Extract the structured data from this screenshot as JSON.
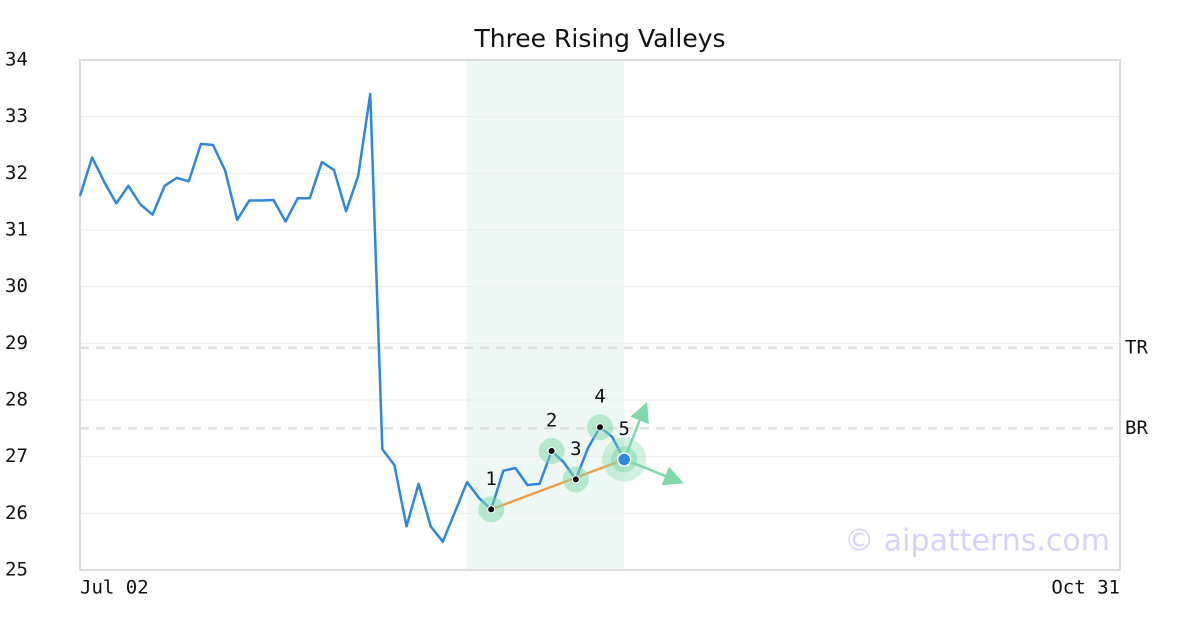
{
  "chart_data": {
    "type": "line",
    "title": "Three Rising Valleys",
    "categories": [
      "Jul 02",
      null,
      null,
      null,
      null,
      null,
      null,
      null,
      null,
      null,
      null,
      null,
      null,
      null,
      null,
      null,
      null,
      null,
      null,
      null,
      null,
      null,
      null,
      null,
      null,
      null,
      null,
      null,
      null,
      null,
      null,
      null,
      null,
      null,
      null,
      null,
      null,
      null,
      null,
      null,
      null,
      null,
      null,
      null,
      null,
      null,
      null,
      null,
      null,
      null,
      null,
      null,
      null,
      null,
      null,
      null,
      null,
      null,
      null,
      null,
      null,
      null,
      null,
      null,
      null,
      null,
      null,
      null,
      null,
      null,
      null,
      null,
      null,
      null,
      null,
      null,
      null,
      null,
      null,
      null,
      null,
      null,
      null,
      null,
      null,
      null,
      "Oct 31"
    ],
    "series": [
      {
        "color": "#2e86de",
        "values": [
          31.6,
          32.28,
          31.85,
          31.47,
          31.78,
          31.45,
          31.27,
          31.78,
          31.92,
          31.86,
          32.52,
          32.5,
          32.05,
          31.18,
          31.52,
          31.52,
          31.53,
          31.15,
          31.56,
          31.56,
          32.2,
          32.06,
          31.33,
          31.95,
          33.4,
          27.13,
          26.85,
          25.77,
          26.52,
          25.77,
          25.5,
          26.02,
          26.55,
          26.27,
          26.07,
          26.75,
          26.8,
          26.5,
          26.52,
          27.1,
          26.9,
          26.6,
          27.15,
          27.52,
          27.35,
          26.95,
          null,
          null,
          null,
          null,
          null,
          null,
          null,
          null,
          null,
          null,
          null,
          null,
          null,
          null,
          null,
          null,
          null,
          null,
          null,
          null,
          null,
          null,
          null,
          null,
          null,
          null,
          null,
          null,
          null,
          null,
          null,
          null,
          null,
          null,
          null,
          null,
          null,
          null,
          null,
          null,
          null
        ]
      }
    ],
    "ylim": [
      25,
      34
    ],
    "yticks": [
      25,
      26,
      27,
      28,
      29,
      30,
      31,
      32,
      33,
      34
    ],
    "grid": true,
    "highlight": {
      "from": 32,
      "to": 45,
      "color": "#e6f5ef"
    },
    "pattern_points": {
      "labels": [
        "1",
        "2",
        "3",
        "4",
        "5"
      ],
      "indices": [
        34,
        39,
        41,
        43,
        45
      ],
      "trend_color": "#f39c4a",
      "halo_color": "#7fd8a8"
    },
    "reference_lines": [
      {
        "name": "TR",
        "value": 28.92
      },
      {
        "name": "BR",
        "value": 27.5
      }
    ],
    "watermark": "© aipatterns.com"
  }
}
